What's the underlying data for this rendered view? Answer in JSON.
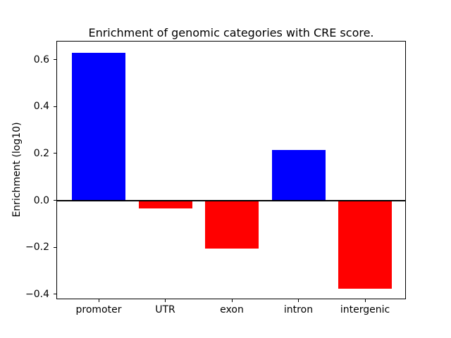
{
  "figure": {
    "title": "Enrichment of genomic categories with CRE score.",
    "ylabel": "Enrichment (log10)"
  },
  "chart_data": {
    "type": "bar",
    "title": "Enrichment of genomic categories with CRE score.",
    "xlabel": "",
    "ylabel": "Enrichment (log10)",
    "categories": [
      "promoter",
      "UTR",
      "exon",
      "intron",
      "intergenic"
    ],
    "values": [
      0.63,
      -0.035,
      -0.205,
      0.215,
      -0.375
    ],
    "bar_colors": [
      "#0000ff",
      "#ff0000",
      "#ff0000",
      "#0000ff",
      "#ff0000"
    ],
    "positive_color": "#0000ff",
    "negative_color": "#ff0000",
    "ylim": [
      -0.4215,
      0.6795
    ],
    "yticks": [
      0.6,
      0.4,
      0.2,
      0.0,
      -0.2,
      -0.4
    ],
    "ytick_labels": [
      "0.6",
      "0.4",
      "0.2",
      "0.0",
      "−0.2",
      "−0.4"
    ],
    "zero_line": true,
    "grid": false,
    "legend": "none",
    "frame": "full-box"
  }
}
